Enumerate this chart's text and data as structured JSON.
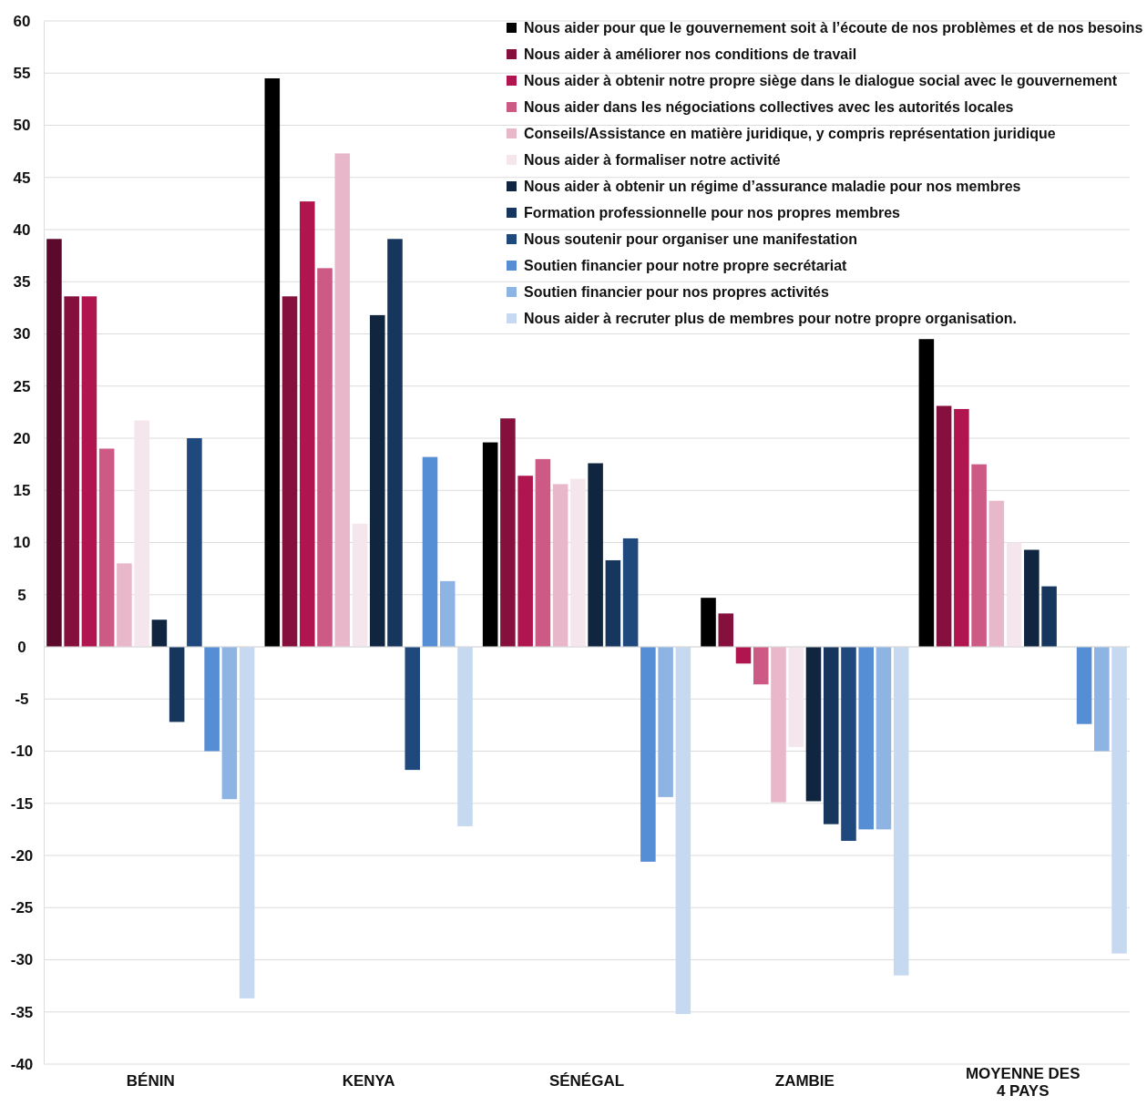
{
  "chart_data": {
    "type": "bar",
    "categories": [
      "BÉNIN",
      "KENYA",
      "SÉNÉGAL",
      "ZAMBIE",
      "MOYENNE DES 4 PAYS"
    ],
    "ylim": [
      -40,
      60
    ],
    "yticks": [
      -40,
      -35,
      -30,
      -25,
      -20,
      -15,
      -10,
      -5,
      0,
      5,
      10,
      15,
      20,
      25,
      30,
      35,
      40,
      45,
      50,
      55,
      60
    ],
    "grid": "y",
    "legend": "top right",
    "series": [
      {
        "name": "Nous aider pour que le gouvernement soit à l’écoute de nos problèmes et de nos besoins",
        "color": "#000000",
        "colors": [
          "#5c0a2b",
          "#000000",
          "#000000",
          "#000000",
          "#000000"
        ],
        "values": [
          39.1,
          54.5,
          19.6,
          4.7,
          29.5
        ]
      },
      {
        "name": "Nous aider à améliorer nos conditions de travail",
        "color": "#86103d",
        "values": [
          33.6,
          33.6,
          21.9,
          3.2,
          23.1
        ]
      },
      {
        "name": "Nous aider à obtenir notre propre siège dans le dialogue social avec le gouvernement",
        "color": "#b0154f",
        "values": [
          33.6,
          42.7,
          16.4,
          -1.6,
          22.8
        ]
      },
      {
        "name": "Nous aider dans les négociations collectives avec les autorités locales",
        "color": "#cc5a85",
        "values": [
          19.0,
          36.3,
          18.0,
          -3.6,
          17.5
        ]
      },
      {
        "name": "Conseils/Assistance en matière juridique, y compris représentation juridique",
        "color": "#e8b7c9",
        "values": [
          8.0,
          47.3,
          15.6,
          -14.9,
          14.0
        ]
      },
      {
        "name": "Nous aider à formaliser notre activité",
        "color": "#f5e6ee",
        "values": [
          21.7,
          11.8,
          16.1,
          -9.6,
          10.0
        ]
      },
      {
        "name": "Nous aider à obtenir un régime d’assurance maladie pour nos membres",
        "color": "#10253f",
        "values": [
          2.6,
          31.8,
          17.6,
          -14.8,
          9.3
        ]
      },
      {
        "name": "Formation professionnelle pour nos propres membres",
        "color": "#17365d",
        "values": [
          -7.2,
          39.1,
          8.3,
          -17.0,
          5.8
        ]
      },
      {
        "name": "Nous soutenir pour organiser une manifestation",
        "color": "#1f497d",
        "values": [
          20.0,
          -11.8,
          10.4,
          -18.6,
          null
        ]
      },
      {
        "name": "Soutien financier pour notre propre secrétariat",
        "color": "#558ed5",
        "values": [
          -10.0,
          18.2,
          -20.6,
          -17.5,
          -7.4
        ]
      },
      {
        "name": "Soutien financier pour nos propres activités",
        "color": "#8eb4e3",
        "values": [
          -14.6,
          6.3,
          -14.4,
          -17.5,
          -10.0
        ]
      },
      {
        "name": "Nous aider à recruter plus de membres pour notre propre organisation.",
        "color": "#c6d9f0",
        "values": [
          -33.7,
          -17.2,
          -35.2,
          -31.5,
          -29.4
        ]
      }
    ]
  }
}
